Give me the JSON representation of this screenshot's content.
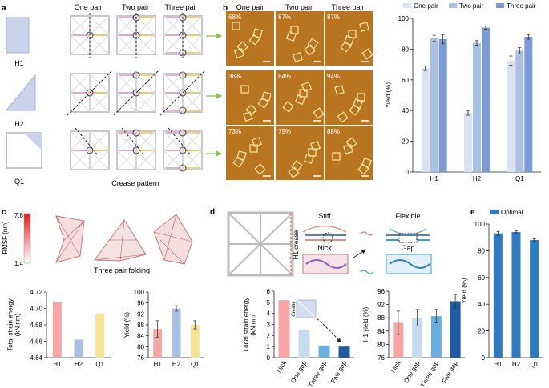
{
  "panel_labels": {
    "a": "a",
    "b": "b",
    "c": "c",
    "d": "d",
    "e": "e"
  },
  "panel_a": {
    "col_headers": [
      "One pair",
      "Two pair",
      "Three pair"
    ],
    "row_labels": [
      "H1",
      "H2",
      "Q1"
    ],
    "caption": "Crease pattern"
  },
  "panel_b_images": {
    "col_headers": [
      "One pair",
      "Two pair",
      "Three pair"
    ],
    "percents": [
      [
        "68%",
        "87%",
        "87%"
      ],
      [
        "38%",
        "84%",
        "94%"
      ],
      [
        "73%",
        "79%",
        "88%"
      ]
    ]
  },
  "colors": {
    "one": "#d9e2f0",
    "two": "#a9c0e2",
    "three": "#7b9bd4",
    "H1": "#f4a6a6",
    "H2": "#a9c0e2",
    "Q1": "#f6e39a",
    "nick": "#f4a6a6",
    "gap1": "#c6dbf0",
    "gap3": "#6aaee0",
    "gap5": "#1f5aa3",
    "optimal": "#2f7ac0",
    "atomic_bg": "#b8741f"
  },
  "chart_data": [
    {
      "type": "bar",
      "panel": "b",
      "categories": [
        "H1",
        "H2",
        "Q1"
      ],
      "series": [
        {
          "name": "One pair",
          "values": [
            67.5,
            38.5,
            72.5
          ],
          "errors": [
            1.5,
            1.5,
            3
          ]
        },
        {
          "name": "Two pair",
          "values": [
            87,
            84,
            79
          ],
          "errors": [
            2,
            1.5,
            2
          ]
        },
        {
          "name": "Three pair",
          "values": [
            86.5,
            94,
            88
          ],
          "errors": [
            3,
            1,
            1.5
          ]
        }
      ],
      "xlabel": "",
      "ylabel": "Yield (%)",
      "ylim": [
        0,
        100
      ],
      "yticks": [
        "0",
        "20",
        "40",
        "60",
        "80",
        "100"
      ],
      "legend": "top"
    },
    {
      "type": "bar",
      "panel": "c-left",
      "categories": [
        "H1",
        "H2",
        "Q1"
      ],
      "values": [
        4.708,
        4.662,
        4.694
      ],
      "ylabel": "Total strain energy\n(kN nm)",
      "ylim": [
        4.64,
        4.72
      ],
      "yticks": [
        "4.64",
        "4.66",
        "4.68",
        "4.70",
        "4.72"
      ]
    },
    {
      "type": "bar",
      "panel": "c-right",
      "categories": [
        "H1",
        "H2",
        "Q1"
      ],
      "values": [
        86.5,
        94,
        88
      ],
      "errors": [
        3,
        1,
        1.5
      ],
      "ylabel": "Yield (%)",
      "ylim": [
        76,
        100
      ],
      "yticks": [
        "76",
        "80",
        "84",
        "88",
        "92",
        "96",
        "100"
      ]
    },
    {
      "type": "bar",
      "panel": "d-left",
      "categories": [
        "Nick",
        "One gap",
        "Three gap",
        "Five gap"
      ],
      "values": [
        5.2,
        2.5,
        1.1,
        1.0
      ],
      "ylabel": "Local strain energy\n(kN nm)",
      "ylim": [
        0,
        6
      ],
      "yticks": [
        "0",
        "1",
        "2",
        "3",
        "4",
        "5",
        "6"
      ]
    },
    {
      "type": "bar",
      "panel": "d-right",
      "categories": [
        "Nick",
        "One gap",
        "Three gap",
        "Five gap"
      ],
      "values": [
        86.5,
        88,
        88.5,
        93
      ],
      "errors": [
        3.5,
        2.5,
        2,
        2
      ],
      "ylabel": "H1 yield (%)",
      "ylim": [
        76,
        96
      ],
      "yticks": [
        "76",
        "80",
        "84",
        "88",
        "92",
        "96"
      ]
    },
    {
      "type": "bar",
      "panel": "e",
      "categories": [
        "H1",
        "H2",
        "Q1"
      ],
      "series": [
        {
          "name": "Optimal",
          "values": [
            93,
            94,
            88
          ],
          "errors": [
            1.5,
            1,
            1
          ]
        }
      ],
      "ylabel": "Yield (%)",
      "ylim": [
        0,
        100
      ],
      "yticks": [
        "0",
        "20",
        "40",
        "60",
        "80",
        "100"
      ],
      "legend": "top"
    }
  ],
  "panel_c": {
    "rmsf_label": "RMSF\n(nm)",
    "rmsf_max": "7.8",
    "rmsf_min": "1.4",
    "caption": "Three pair folding"
  },
  "panel_d": {
    "stiff": "Stiff",
    "flexible": "Flexible",
    "nick": "Nick",
    "gap": "Gap",
    "h1_crease": "H1 crease",
    "inset_crease": "Crease"
  }
}
